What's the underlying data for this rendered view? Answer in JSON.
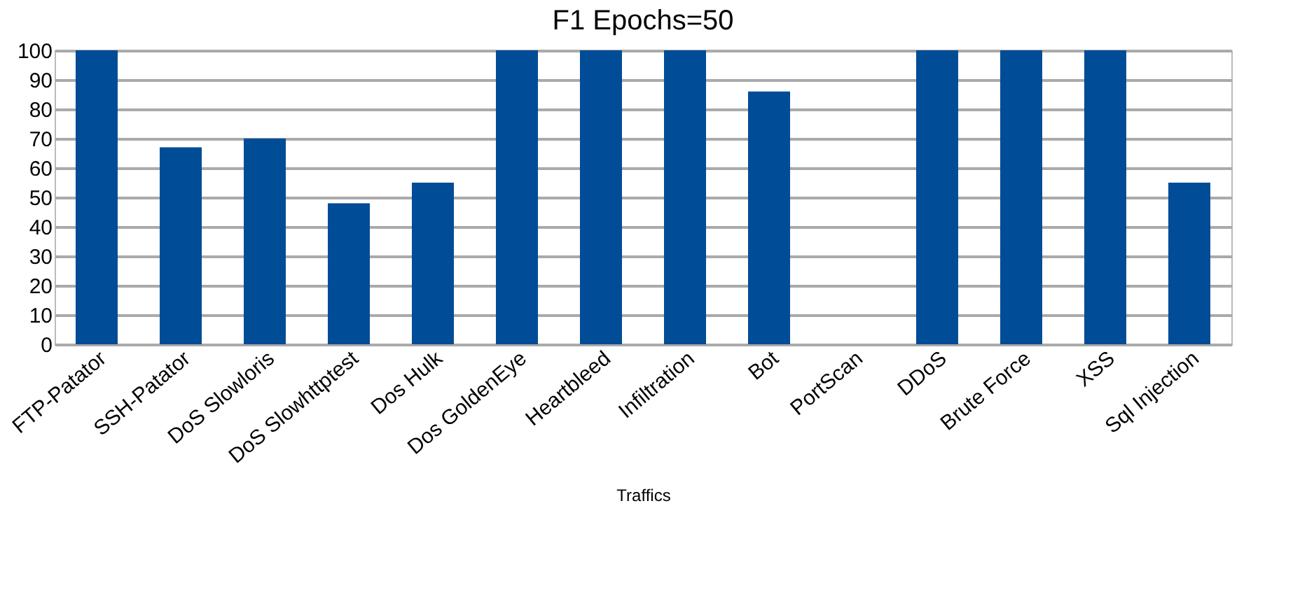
{
  "chart_data": {
    "type": "bar",
    "title": "F1  Epochs=50",
    "xlabel": "Traffics",
    "categories": [
      "FTP-Patator",
      "SSH-Patator",
      "DoS Slowloris",
      "DoS Slowhttptest",
      "Dos Hulk",
      "Dos GoldenEye",
      "Heartbleed",
      "Infiltration",
      "Bot",
      "PortScan",
      "DDoS",
      "Brute Force",
      "XSS",
      "Sql Injection"
    ],
    "values": [
      100,
      67,
      70,
      48,
      55,
      100,
      100,
      100,
      86,
      0,
      100,
      100,
      100,
      55
    ],
    "color": "#004c97",
    "ylim": [
      0,
      100
    ],
    "yticks": [
      0,
      10,
      20,
      30,
      40,
      50,
      60,
      70,
      80,
      90,
      100
    ],
    "grid": "y"
  }
}
